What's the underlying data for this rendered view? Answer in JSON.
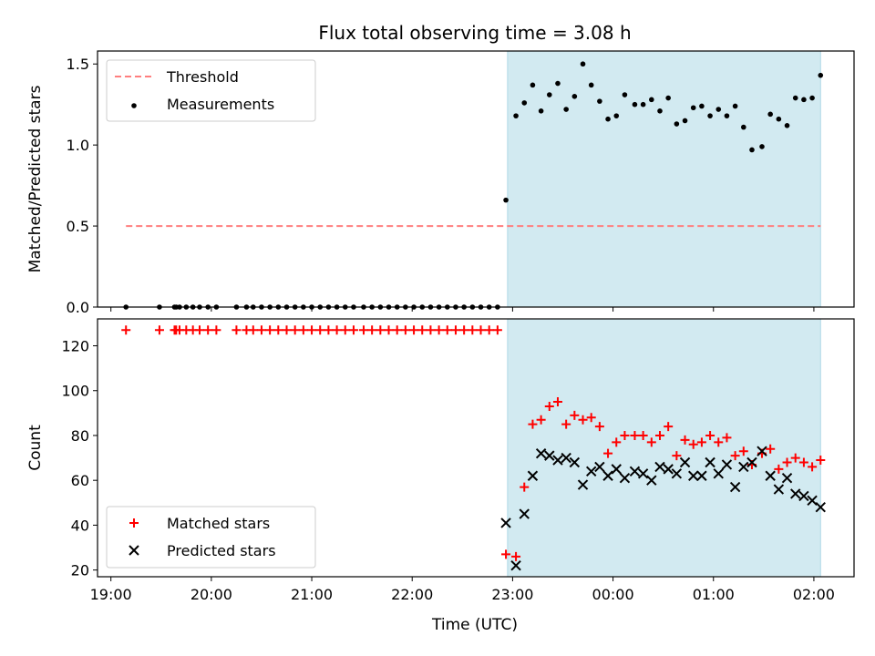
{
  "figure": {
    "title": "Flux total observing time = 3.08 h",
    "xlabel": "Time (UTC)"
  },
  "colors": {
    "threshold": "#ff7f7f",
    "measurement": "#000000",
    "matched": "#ff0000",
    "predicted": "#000000",
    "shade": "#add8e6"
  },
  "chart_data": [
    {
      "type": "scatter",
      "ylabel": "Matched/Predicted stars",
      "xlim": [
        "18:52",
        "02:24"
      ],
      "ylim": [
        0,
        1.58
      ],
      "yticks": [
        0.0,
        0.5,
        1.0,
        1.5
      ],
      "legend_placement": "top-left",
      "shaded_region": {
        "start": "22:57",
        "end": "02:04"
      },
      "threshold": {
        "name": "Threshold",
        "y": 0.5,
        "x_range": [
          "19:09",
          "02:04"
        ]
      },
      "series": [
        {
          "name": "Measurements",
          "points": [
            [
              "19:09",
              0
            ],
            [
              "19:29",
              0
            ],
            [
              "19:38",
              0
            ],
            [
              "19:39",
              0
            ],
            [
              "19:41",
              0
            ],
            [
              "19:45",
              0
            ],
            [
              "19:49",
              0
            ],
            [
              "19:53",
              0
            ],
            [
              "19:58",
              0
            ],
            [
              "20:03",
              0
            ],
            [
              "20:15",
              0
            ],
            [
              "20:21",
              0
            ],
            [
              "20:25",
              0
            ],
            [
              "20:30",
              0
            ],
            [
              "20:35",
              0
            ],
            [
              "20:40",
              0
            ],
            [
              "20:45",
              0
            ],
            [
              "20:50",
              0
            ],
            [
              "20:55",
              0
            ],
            [
              "21:00",
              0
            ],
            [
              "21:05",
              0
            ],
            [
              "21:10",
              0
            ],
            [
              "21:15",
              0
            ],
            [
              "21:20",
              0
            ],
            [
              "21:25",
              0
            ],
            [
              "21:31",
              0
            ],
            [
              "21:36",
              0
            ],
            [
              "21:41",
              0
            ],
            [
              "21:46",
              0
            ],
            [
              "21:51",
              0
            ],
            [
              "21:56",
              0
            ],
            [
              "22:01",
              0
            ],
            [
              "22:06",
              0
            ],
            [
              "22:11",
              0
            ],
            [
              "22:16",
              0
            ],
            [
              "22:21",
              0
            ],
            [
              "22:26",
              0
            ],
            [
              "22:31",
              0
            ],
            [
              "22:36",
              0
            ],
            [
              "22:41",
              0
            ],
            [
              "22:46",
              0
            ],
            [
              "22:51",
              0
            ],
            [
              "22:56",
              0.66
            ],
            [
              "23:02",
              1.18
            ],
            [
              "23:07",
              1.26
            ],
            [
              "23:12",
              1.37
            ],
            [
              "23:17",
              1.21
            ],
            [
              "23:22",
              1.31
            ],
            [
              "23:27",
              1.38
            ],
            [
              "23:32",
              1.22
            ],
            [
              "23:37",
              1.3
            ],
            [
              "23:42",
              1.5
            ],
            [
              "23:47",
              1.37
            ],
            [
              "23:52",
              1.27
            ],
            [
              "23:57",
              1.16
            ],
            [
              "00:02",
              1.18
            ],
            [
              "00:07",
              1.31
            ],
            [
              "00:13",
              1.25
            ],
            [
              "00:18",
              1.25
            ],
            [
              "00:23",
              1.28
            ],
            [
              "00:28",
              1.21
            ],
            [
              "00:33",
              1.29
            ],
            [
              "00:38",
              1.13
            ],
            [
              "00:43",
              1.15
            ],
            [
              "00:48",
              1.23
            ],
            [
              "00:53",
              1.24
            ],
            [
              "00:58",
              1.18
            ],
            [
              "01:03",
              1.22
            ],
            [
              "01:08",
              1.18
            ],
            [
              "01:13",
              1.24
            ],
            [
              "01:18",
              1.11
            ],
            [
              "01:23",
              0.97
            ],
            [
              "01:29",
              0.99
            ],
            [
              "01:34",
              1.19
            ],
            [
              "01:39",
              1.16
            ],
            [
              "01:44",
              1.12
            ],
            [
              "01:49",
              1.29
            ],
            [
              "01:54",
              1.28
            ],
            [
              "01:59",
              1.29
            ],
            [
              "02:04",
              1.43
            ]
          ]
        }
      ]
    },
    {
      "type": "scatter",
      "ylabel": "Count",
      "xlim": [
        "18:52",
        "02:24"
      ],
      "ylim": [
        17,
        132
      ],
      "yticks": [
        20,
        40,
        60,
        80,
        100,
        120
      ],
      "xticks": [
        "19:00",
        "20:00",
        "21:00",
        "22:00",
        "23:00",
        "00:00",
        "01:00",
        "02:00"
      ],
      "legend_placement": "bottom-left",
      "shaded_region": {
        "start": "22:57",
        "end": "02:04"
      },
      "series": [
        {
          "name": "Matched stars",
          "marker": "plus",
          "points": [
            [
              "19:09",
              127
            ],
            [
              "19:29",
              127
            ],
            [
              "19:38",
              127
            ],
            [
              "19:39",
              127
            ],
            [
              "19:41",
              127
            ],
            [
              "19:45",
              127
            ],
            [
              "19:49",
              127
            ],
            [
              "19:53",
              127
            ],
            [
              "19:58",
              127
            ],
            [
              "20:03",
              127
            ],
            [
              "20:15",
              127
            ],
            [
              "20:21",
              127
            ],
            [
              "20:25",
              127
            ],
            [
              "20:30",
              127
            ],
            [
              "20:35",
              127
            ],
            [
              "20:40",
              127
            ],
            [
              "20:45",
              127
            ],
            [
              "20:50",
              127
            ],
            [
              "20:55",
              127
            ],
            [
              "21:00",
              127
            ],
            [
              "21:05",
              127
            ],
            [
              "21:10",
              127
            ],
            [
              "21:15",
              127
            ],
            [
              "21:20",
              127
            ],
            [
              "21:25",
              127
            ],
            [
              "21:31",
              127
            ],
            [
              "21:36",
              127
            ],
            [
              "21:41",
              127
            ],
            [
              "21:46",
              127
            ],
            [
              "21:51",
              127
            ],
            [
              "21:56",
              127
            ],
            [
              "22:01",
              127
            ],
            [
              "22:06",
              127
            ],
            [
              "22:11",
              127
            ],
            [
              "22:16",
              127
            ],
            [
              "22:21",
              127
            ],
            [
              "22:26",
              127
            ],
            [
              "22:31",
              127
            ],
            [
              "22:36",
              127
            ],
            [
              "22:41",
              127
            ],
            [
              "22:46",
              127
            ],
            [
              "22:51",
              127
            ],
            [
              "22:56",
              27
            ],
            [
              "23:02",
              26
            ],
            [
              "23:07",
              57
            ],
            [
              "23:12",
              85
            ],
            [
              "23:17",
              87
            ],
            [
              "23:22",
              93
            ],
            [
              "23:27",
              95
            ],
            [
              "23:32",
              85
            ],
            [
              "23:37",
              89
            ],
            [
              "23:42",
              87
            ],
            [
              "23:47",
              88
            ],
            [
              "23:52",
              84
            ],
            [
              "23:57",
              72
            ],
            [
              "00:02",
              77
            ],
            [
              "00:07",
              80
            ],
            [
              "00:13",
              80
            ],
            [
              "00:18",
              80
            ],
            [
              "00:23",
              77
            ],
            [
              "00:28",
              80
            ],
            [
              "00:33",
              84
            ],
            [
              "00:38",
              71
            ],
            [
              "00:43",
              78
            ],
            [
              "00:48",
              76
            ],
            [
              "00:53",
              77
            ],
            [
              "00:58",
              80
            ],
            [
              "01:03",
              77
            ],
            [
              "01:08",
              79
            ],
            [
              "01:13",
              71
            ],
            [
              "01:18",
              73
            ],
            [
              "01:23",
              67
            ],
            [
              "01:29",
              72
            ],
            [
              "01:34",
              74
            ],
            [
              "01:39",
              65
            ],
            [
              "01:44",
              68
            ],
            [
              "01:49",
              70
            ],
            [
              "01:54",
              68
            ],
            [
              "01:59",
              66
            ],
            [
              "02:04",
              69
            ]
          ]
        },
        {
          "name": "Predicted stars",
          "marker": "x",
          "points": [
            [
              "22:56",
              41
            ],
            [
              "23:02",
              22
            ],
            [
              "23:07",
              45
            ],
            [
              "23:12",
              62
            ],
            [
              "23:17",
              72
            ],
            [
              "23:22",
              71
            ],
            [
              "23:27",
              69
            ],
            [
              "23:32",
              70
            ],
            [
              "23:37",
              68
            ],
            [
              "23:42",
              58
            ],
            [
              "23:47",
              64
            ],
            [
              "23:52",
              66
            ],
            [
              "23:57",
              62
            ],
            [
              "00:02",
              65
            ],
            [
              "00:07",
              61
            ],
            [
              "00:13",
              64
            ],
            [
              "00:18",
              63
            ],
            [
              "00:23",
              60
            ],
            [
              "00:28",
              66
            ],
            [
              "00:33",
              65
            ],
            [
              "00:38",
              63
            ],
            [
              "00:43",
              68
            ],
            [
              "00:48",
              62
            ],
            [
              "00:53",
              62
            ],
            [
              "00:58",
              68
            ],
            [
              "01:03",
              63
            ],
            [
              "01:08",
              67
            ],
            [
              "01:13",
              57
            ],
            [
              "01:18",
              66
            ],
            [
              "01:23",
              68
            ],
            [
              "01:29",
              73
            ],
            [
              "01:34",
              62
            ],
            [
              "01:39",
              56
            ],
            [
              "01:44",
              61
            ],
            [
              "01:49",
              54
            ],
            [
              "01:54",
              53
            ],
            [
              "01:59",
              51
            ],
            [
              "02:04",
              48
            ]
          ]
        }
      ]
    }
  ]
}
